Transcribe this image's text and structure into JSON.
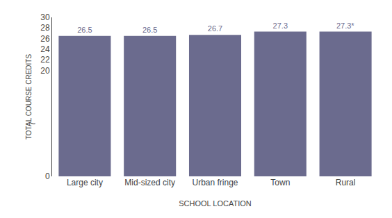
{
  "chart_data": {
    "type": "bar",
    "categories": [
      "Large city",
      "Mid-sized city",
      "Urban fringe",
      "Town",
      "Rural"
    ],
    "values": [
      26.5,
      26.5,
      26.7,
      27.3,
      27.3
    ],
    "value_labels": [
      "26.5",
      "26.5",
      "26.7",
      "27.3",
      "27.3*"
    ],
    "data_labels": true,
    "color": "#6b6b8e",
    "xlabel": "SCHOOL LOCATION",
    "ylabel": "TOTAL COURSE CREDITS",
    "ylim": [
      0,
      30
    ],
    "yticks": [
      0,
      20,
      22,
      24,
      26,
      28,
      30
    ],
    "grid": false,
    "annotations": [
      {
        "text": "~",
        "y": 10
      }
    ]
  }
}
